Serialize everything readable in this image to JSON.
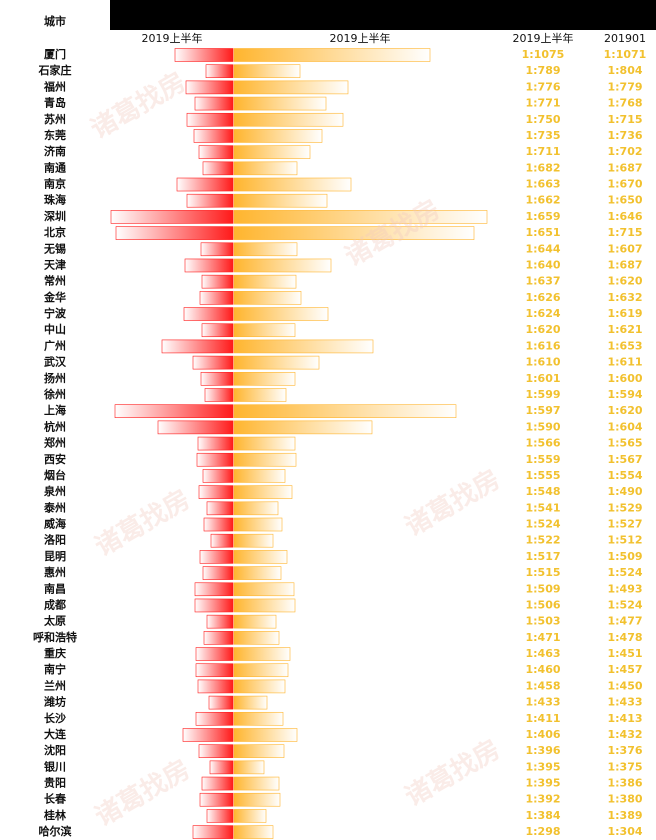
{
  "chart_data": {
    "type": "butterfly",
    "corner_label": "城市",
    "watermark": "诸葛找房",
    "categories": [
      "厦门",
      "石家庄",
      "福州",
      "青岛",
      "苏州",
      "东莞",
      "济南",
      "南通",
      "南京",
      "珠海",
      "深圳",
      "北京",
      "无锡",
      "天津",
      "常州",
      "金华",
      "宁波",
      "中山",
      "广州",
      "武汉",
      "扬州",
      "徐州",
      "上海",
      "杭州",
      "郑州",
      "西安",
      "烟台",
      "泉州",
      "泰州",
      "威海",
      "洛阳",
      "昆明",
      "惠州",
      "南昌",
      "成都",
      "太原",
      "呼和浩特",
      "重庆",
      "南宁",
      "兰州",
      "潍坊",
      "长沙",
      "大连",
      "沈阳",
      "银川",
      "贵阳",
      "长春",
      "桂林",
      "哈尔滨"
    ],
    "xlim_left": [
      0,
      125
    ],
    "xlim_right": [
      0,
      255
    ],
    "series": [
      {
        "name": "2019上半年",
        "color": "#ff1a1a",
        "values": [
          58,
          27,
          47,
          38,
          46,
          39,
          34,
          30,
          56,
          46,
          122,
          117,
          32,
          48,
          31,
          33,
          49,
          31,
          71,
          40,
          32,
          28,
          118,
          75,
          35,
          36,
          30,
          34,
          26,
          29,
          22,
          33,
          30,
          38,
          38,
          26,
          29,
          37,
          37,
          35,
          24,
          37,
          50,
          34,
          23,
          31,
          33,
          26,
          40
        ]
      },
      {
        "name": "2019上半年",
        "color": "#ffb52e",
        "values": [
          196,
          66,
          114,
          92,
          109,
          88,
          76,
          63,
          117,
          93,
          253,
          240,
          63,
          97,
          62,
          67,
          94,
          61,
          139,
          85,
          61,
          52,
          222,
          138,
          61,
          62,
          51,
          58,
          44,
          48,
          39,
          53,
          47,
          60,
          61,
          42,
          45,
          56,
          54,
          51,
          33,
          49,
          63,
          50,
          30,
          45,
          46,
          32,
          39
        ]
      }
    ],
    "columns": [
      {
        "name": "2019上半年",
        "values": [
          1075,
          789,
          776,
          771,
          750,
          735,
          711,
          682,
          663,
          662,
          659,
          651,
          644,
          640,
          637,
          626,
          624,
          620,
          616,
          610,
          601,
          599,
          597,
          590,
          566,
          559,
          555,
          548,
          541,
          524,
          522,
          517,
          515,
          509,
          506,
          503,
          471,
          463,
          460,
          458,
          433,
          411,
          406,
          396,
          395,
          395,
          392,
          384,
          298
        ],
        "value_labels": [
          "1:1075",
          "1:789",
          "1:776",
          "1:771",
          "1:750",
          "1:735",
          "1:711",
          "1:682",
          "1:663",
          "1:662",
          "1:659",
          "1:651",
          "1:644",
          "1:640",
          "1:637",
          "1:626",
          "1:624",
          "1:620",
          "1:616",
          "1:610",
          "1:601",
          "1:599",
          "1:597",
          "1:590",
          "1:566",
          "1:559",
          "1:555",
          "1:548",
          "1:541",
          "1:524",
          "1:522",
          "1:517",
          "1:515",
          "1:509",
          "1:506",
          "1:503",
          "1:471",
          "1:463",
          "1:460",
          "1:458",
          "1:433",
          "1:411",
          "1:406",
          "1:396",
          "1:395",
          "1:395",
          "1:392",
          "1:384",
          "1:298"
        ]
      },
      {
        "name": "201901",
        "values": [
          1071,
          804,
          779,
          768,
          715,
          736,
          702,
          687,
          670,
          650,
          646,
          715,
          607,
          687,
          620,
          632,
          619,
          621,
          653,
          611,
          600,
          594,
          620,
          604,
          565,
          567,
          554,
          490,
          529,
          527,
          512,
          509,
          524,
          493,
          524,
          477,
          478,
          451,
          457,
          450,
          433,
          413,
          432,
          376,
          375,
          386,
          380,
          389,
          304
        ],
        "value_labels": [
          "1:1071",
          "1:804",
          "1:779",
          "1:768",
          "1:715",
          "1:736",
          "1:702",
          "1:687",
          "1:670",
          "1:650",
          "1:646",
          "1:715",
          "1:607",
          "1:687",
          "1:620",
          "1:632",
          "1:619",
          "1:621",
          "1:653",
          "1:611",
          "1:600",
          "1:594",
          "1:620",
          "1:604",
          "1:565",
          "1:567",
          "1:554",
          "1:490",
          "1:529",
          "1:527",
          "1:512",
          "1:509",
          "1:524",
          "1:493",
          "1:524",
          "1:477",
          "1:478",
          "1:451",
          "1:457",
          "1:450",
          "1:433",
          "1:413",
          "1:432",
          "1:376",
          "1:375",
          "1:386",
          "1:380",
          "1:389",
          "1:304"
        ]
      }
    ]
  }
}
